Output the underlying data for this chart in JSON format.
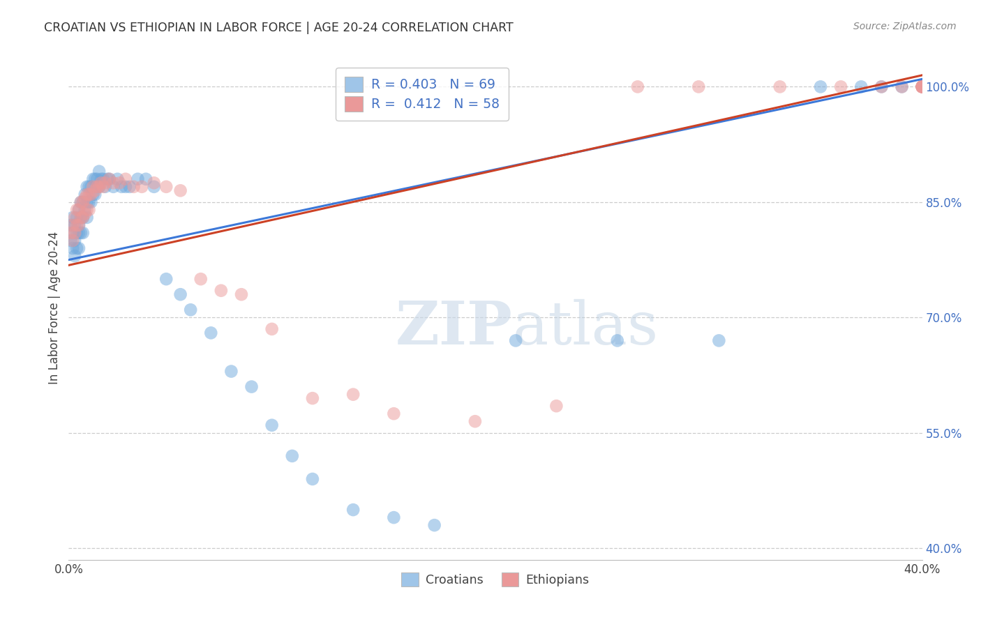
{
  "title": "CROATIAN VS ETHIOPIAN IN LABOR FORCE | AGE 20-24 CORRELATION CHART",
  "source": "Source: ZipAtlas.com",
  "ylabel": "In Labor Force | Age 20-24",
  "xlim": [
    0.0,
    0.42
  ],
  "ylim": [
    0.385,
    1.04
  ],
  "ytick_labels": [
    "40.0%",
    "55.0%",
    "70.0%",
    "85.0%",
    "100.0%"
  ],
  "ytick_values": [
    0.4,
    0.55,
    0.7,
    0.85,
    1.0
  ],
  "xtick_positions": [
    0.0,
    0.07,
    0.14,
    0.21,
    0.28,
    0.35,
    0.42
  ],
  "xtick_labels": [
    "0.0%",
    "",
    "",
    "",
    "",
    "",
    "40.0%"
  ],
  "watermark_zip": "ZIP",
  "watermark_atlas": "atlas",
  "croatian_R": 0.403,
  "croatian_N": 69,
  "ethiopian_R": 0.412,
  "ethiopian_N": 58,
  "croatian_color": "#6fa8dc",
  "ethiopian_color": "#ea9999",
  "croatian_line_color": "#3c78d8",
  "ethiopian_line_color": "#cc4125",
  "legend_box_color_croatian": "#9fc5e8",
  "legend_box_color_ethiopian": "#ea9999",
  "croatian_line_x0": 0.0,
  "croatian_line_x1": 0.42,
  "croatian_line_y0": 0.775,
  "croatian_line_y1": 1.01,
  "ethiopian_line_x0": 0.0,
  "ethiopian_line_x1": 0.42,
  "ethiopian_line_y0": 0.768,
  "ethiopian_line_y1": 1.015,
  "croatian_x": [
    0.001,
    0.001,
    0.002,
    0.002,
    0.002,
    0.003,
    0.003,
    0.003,
    0.004,
    0.004,
    0.004,
    0.005,
    0.005,
    0.005,
    0.005,
    0.006,
    0.006,
    0.006,
    0.007,
    0.007,
    0.007,
    0.008,
    0.008,
    0.009,
    0.009,
    0.009,
    0.01,
    0.01,
    0.011,
    0.011,
    0.012,
    0.012,
    0.013,
    0.013,
    0.014,
    0.015,
    0.015,
    0.016,
    0.017,
    0.018,
    0.019,
    0.02,
    0.022,
    0.024,
    0.026,
    0.028,
    0.03,
    0.034,
    0.038,
    0.042,
    0.048,
    0.055,
    0.06,
    0.07,
    0.08,
    0.09,
    0.1,
    0.11,
    0.12,
    0.14,
    0.16,
    0.18,
    0.22,
    0.27,
    0.32,
    0.37,
    0.39,
    0.4,
    0.41
  ],
  "croatian_y": [
    0.82,
    0.8,
    0.83,
    0.81,
    0.79,
    0.82,
    0.8,
    0.78,
    0.83,
    0.81,
    0.79,
    0.84,
    0.82,
    0.81,
    0.79,
    0.85,
    0.83,
    0.81,
    0.85,
    0.83,
    0.81,
    0.86,
    0.84,
    0.87,
    0.85,
    0.83,
    0.87,
    0.85,
    0.87,
    0.85,
    0.88,
    0.86,
    0.88,
    0.86,
    0.88,
    0.89,
    0.87,
    0.88,
    0.88,
    0.87,
    0.88,
    0.88,
    0.87,
    0.88,
    0.87,
    0.87,
    0.87,
    0.88,
    0.88,
    0.87,
    0.75,
    0.73,
    0.71,
    0.68,
    0.63,
    0.61,
    0.56,
    0.52,
    0.49,
    0.45,
    0.44,
    0.43,
    0.67,
    0.67,
    0.67,
    1.0,
    1.0,
    1.0,
    1.0
  ],
  "ethiopian_x": [
    0.001,
    0.002,
    0.002,
    0.003,
    0.003,
    0.004,
    0.004,
    0.005,
    0.005,
    0.006,
    0.006,
    0.007,
    0.007,
    0.008,
    0.008,
    0.009,
    0.009,
    0.01,
    0.01,
    0.011,
    0.012,
    0.013,
    0.014,
    0.015,
    0.016,
    0.017,
    0.018,
    0.02,
    0.022,
    0.025,
    0.028,
    0.032,
    0.036,
    0.042,
    0.048,
    0.055,
    0.065,
    0.075,
    0.085,
    0.1,
    0.12,
    0.14,
    0.16,
    0.2,
    0.24,
    0.28,
    0.31,
    0.35,
    0.38,
    0.4,
    0.41,
    0.42,
    0.42,
    0.42,
    0.42,
    0.42,
    0.42,
    0.42
  ],
  "ethiopian_y": [
    0.81,
    0.82,
    0.8,
    0.83,
    0.81,
    0.84,
    0.82,
    0.84,
    0.82,
    0.85,
    0.83,
    0.85,
    0.83,
    0.855,
    0.835,
    0.86,
    0.84,
    0.86,
    0.84,
    0.86,
    0.87,
    0.865,
    0.87,
    0.87,
    0.875,
    0.87,
    0.875,
    0.88,
    0.875,
    0.875,
    0.88,
    0.87,
    0.87,
    0.875,
    0.87,
    0.865,
    0.75,
    0.735,
    0.73,
    0.685,
    0.595,
    0.6,
    0.575,
    0.565,
    0.585,
    1.0,
    1.0,
    1.0,
    1.0,
    1.0,
    1.0,
    1.0,
    1.0,
    1.0,
    1.0,
    1.0,
    1.0,
    1.0
  ]
}
